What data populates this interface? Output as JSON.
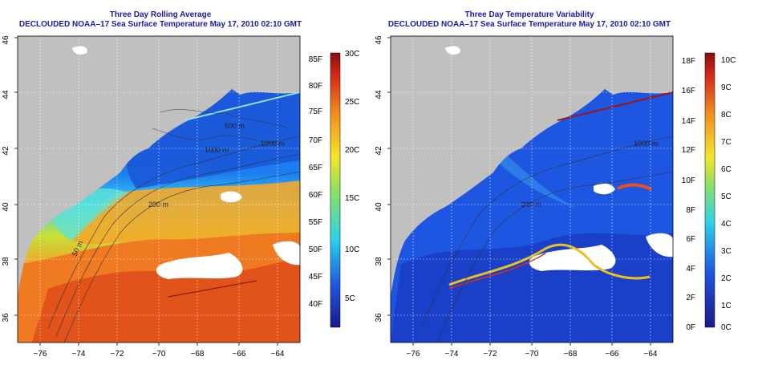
{
  "left_panel": {
    "title": "Three Day Rolling Average",
    "subtitle": "DECLOUDED NOAA–17 Sea Surface Temperature May 17, 2010 02:10 GMT",
    "colorbar_f_labels": [
      "85F",
      "80F",
      "75F",
      "70F",
      "65F",
      "60F",
      "55F",
      "50F",
      "45F",
      "40F"
    ],
    "colorbar_c_labels": [
      "30C",
      "25C",
      "20C",
      "15C",
      "10C",
      "5C"
    ],
    "contour_labels": [
      "500 m",
      "1000 m",
      "200 m",
      "50 m",
      "1000 m"
    ]
  },
  "right_panel": {
    "title": "Three Day Temperature Variability",
    "subtitle": "DECLOUDED NOAA–17 Sea Surface Temperature May 17, 2010 02:10 GMT",
    "colorbar_f_labels": [
      "18F",
      "16F",
      "14F",
      "12F",
      "10F",
      "8F",
      "6F",
      "4F",
      "2F",
      "0F"
    ],
    "colorbar_c_labels": [
      "10C",
      "9C",
      "8C",
      "7C",
      "6C",
      "5C",
      "4C",
      "3C",
      "2C",
      "1C",
      "0C"
    ],
    "contour_labels": [
      "1000 m",
      "200 m"
    ]
  },
  "axes": {
    "lon_ticks": [
      "−76",
      "−74",
      "−72",
      "−70",
      "−68",
      "−66",
      "−64"
    ],
    "lat_ticks": [
      "46",
      "44",
      "42",
      "40",
      "38",
      "36"
    ]
  },
  "colors": {
    "title": "#1a1aa6",
    "land": "#c0c0c0",
    "cloud": "#ffffff",
    "cold": "#1a4fd6",
    "warm": "#e8501a"
  }
}
